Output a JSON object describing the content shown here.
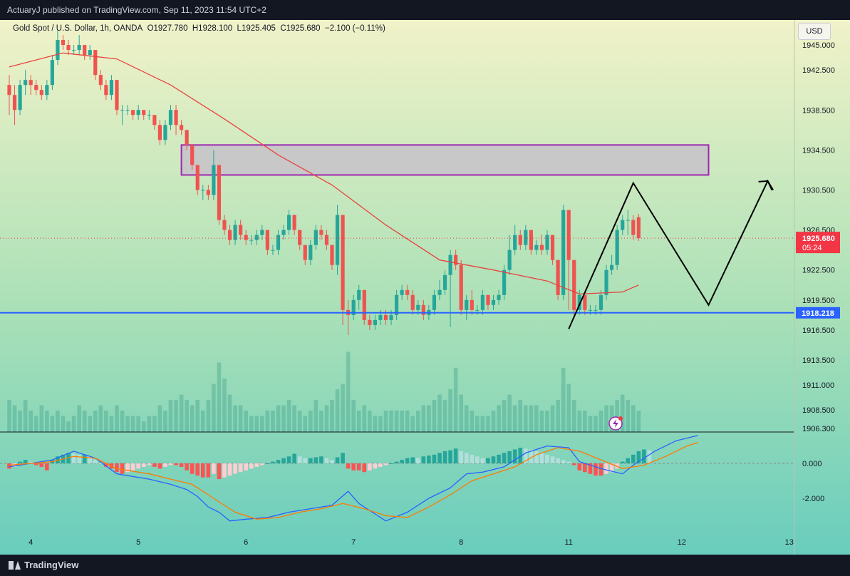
{
  "header": {
    "publisher": "ActuaryJ published on TradingView.com, Sep 11, 2023 11:54 UTC+2"
  },
  "legend": {
    "symbol": "Gold Spot / U.S. Dollar, 1h, OANDA",
    "open": "O1927.780",
    "high": "H1928.100",
    "low": "L1925.405",
    "close": "C1925.680",
    "change": "−2.100 (−0.11%)"
  },
  "currency_button": "USD",
  "brand": "TradingView",
  "colors": {
    "bullish": "#26a69a",
    "bearish": "#ef5350",
    "ma_line": "#e8433f",
    "support_line": "#2962ff",
    "zone_fill": "#c8c8c8",
    "zone_border": "#9c27b0",
    "macd_line": "#2962ff",
    "signal_line": "#ff7b00",
    "price_label": "#f23645"
  },
  "chart_data": {
    "type": "candlestick",
    "symbol": "Gold Spot / U.S. Dollar",
    "timeframe": "1h",
    "price_axis": {
      "ylim": [
        1906.3,
        1947.5
      ],
      "ticks": [
        "1945.000",
        "1942.500",
        "1938.500",
        "1934.500",
        "1930.500",
        "1926.500",
        "1922.500",
        "1919.500",
        "1916.500",
        "1913.500",
        "1911.000",
        "1908.500",
        "1906.300"
      ]
    },
    "x_axis": {
      "ticks": [
        "4",
        "5",
        "6",
        "7",
        "8",
        "11",
        "12",
        "13"
      ],
      "tick_index": [
        4,
        24,
        44,
        64,
        84,
        104,
        125,
        145
      ]
    },
    "candles": [
      [
        1941,
        1940,
        1942,
        1938
      ],
      [
        1940,
        1938.5,
        1941,
        1937
      ],
      [
        1938.5,
        1941,
        1941.5,
        1938
      ],
      [
        1941,
        1941.5,
        1942.5,
        1940
      ],
      [
        1941.5,
        1941,
        1942,
        1940
      ],
      [
        1941,
        1940.5,
        1941.5,
        1940
      ],
      [
        1940.5,
        1940,
        1941,
        1939.5
      ],
      [
        1940,
        1941,
        1941.5,
        1939.5
      ],
      [
        1941,
        1943.5,
        1944,
        1940.5
      ],
      [
        1943.5,
        1945.5,
        1946.5,
        1943
      ],
      [
        1945.5,
        1945,
        1946,
        1944.5
      ],
      [
        1945,
        1944.5,
        1945.5,
        1944
      ],
      [
        1944.5,
        1944.5,
        1945,
        1944
      ],
      [
        1944.5,
        1945,
        1946,
        1944
      ],
      [
        1945,
        1944,
        1945,
        1943.5
      ],
      [
        1944,
        1944.5,
        1945,
        1943.5
      ],
      [
        1944.5,
        1942,
        1944.5,
        1941.5
      ],
      [
        1942,
        1941,
        1942.5,
        1940.5
      ],
      [
        1941,
        1940,
        1941.5,
        1939.5
      ],
      [
        1940,
        1941.5,
        1942,
        1939.5
      ],
      [
        1941.5,
        1938.5,
        1941.5,
        1938
      ],
      [
        1938.5,
        1938.5,
        1939,
        1937
      ],
      [
        1938.5,
        1938.5,
        1939,
        1938
      ],
      [
        1938.5,
        1938,
        1938.5,
        1937.5
      ],
      [
        1938,
        1938.5,
        1939,
        1937.5
      ],
      [
        1938.5,
        1938,
        1938.5,
        1937.5
      ],
      [
        1938,
        1938,
        1938.5,
        1937.5
      ],
      [
        1938,
        1937,
        1938,
        1936.5
      ],
      [
        1937,
        1935.5,
        1937.5,
        1935
      ],
      [
        1935.5,
        1937,
        1937.5,
        1935
      ],
      [
        1937,
        1938.5,
        1939,
        1936.5
      ],
      [
        1938.5,
        1937,
        1939,
        1936
      ],
      [
        1937,
        1936.5,
        1937.5,
        1936
      ],
      [
        1936.5,
        1935,
        1936.5,
        1934.5
      ],
      [
        1935,
        1933,
        1935,
        1932.5
      ],
      [
        1933,
        1930.5,
        1933,
        1930
      ],
      [
        1930.5,
        1930.5,
        1931,
        1929.5
      ],
      [
        1930.5,
        1930,
        1931,
        1929.5
      ],
      [
        1930,
        1933,
        1934.5,
        1929.5
      ],
      [
        1933,
        1927.5,
        1933,
        1927
      ],
      [
        1927.5,
        1926.5,
        1928,
        1926
      ],
      [
        1926.5,
        1925.5,
        1927,
        1925
      ],
      [
        1925.5,
        1927,
        1927.5,
        1925
      ],
      [
        1927,
        1926,
        1927.5,
        1925.5
      ],
      [
        1926,
        1925.5,
        1926.5,
        1925
      ],
      [
        1925.5,
        1925.5,
        1926,
        1925
      ],
      [
        1925.5,
        1926,
        1926.5,
        1925
      ],
      [
        1926,
        1926.5,
        1927,
        1925.5
      ],
      [
        1926.5,
        1924.5,
        1926.5,
        1924
      ],
      [
        1924.5,
        1924.5,
        1925,
        1924
      ],
      [
        1924.5,
        1926,
        1926.5,
        1924
      ],
      [
        1926,
        1926.5,
        1927,
        1925.5
      ],
      [
        1926.5,
        1928,
        1928.5,
        1926
      ],
      [
        1928,
        1926.5,
        1928,
        1926
      ],
      [
        1926.5,
        1925,
        1926.5,
        1924.5
      ],
      [
        1925,
        1923.5,
        1925,
        1923
      ],
      [
        1923.5,
        1925,
        1925.5,
        1923
      ],
      [
        1925,
        1926.5,
        1927,
        1924.5
      ],
      [
        1926.5,
        1926,
        1927,
        1925.5
      ],
      [
        1926,
        1925,
        1926.5,
        1924.5
      ],
      [
        1925,
        1923,
        1925,
        1922.5
      ],
      [
        1923,
        1928,
        1929,
        1922
      ],
      [
        1928,
        1918.5,
        1928,
        1917
      ],
      [
        1918.5,
        1918,
        1919.5,
        1916
      ],
      [
        1918,
        1919.5,
        1920,
        1917.5
      ],
      [
        1919.5,
        1920.5,
        1921,
        1918.5
      ],
      [
        1920.5,
        1917.5,
        1920.5,
        1917
      ],
      [
        1917.5,
        1917,
        1918,
        1916.5
      ],
      [
        1917,
        1917.5,
        1918,
        1916.5
      ],
      [
        1917.5,
        1918,
        1918.5,
        1917
      ],
      [
        1918,
        1917.5,
        1918.5,
        1917
      ],
      [
        1917.5,
        1918,
        1918.5,
        1917
      ],
      [
        1918,
        1920,
        1920.5,
        1917.5
      ],
      [
        1920,
        1920.5,
        1921,
        1919.5
      ],
      [
        1920.5,
        1920,
        1921,
        1919.5
      ],
      [
        1920,
        1918.5,
        1920.5,
        1918
      ],
      [
        1918.5,
        1919,
        1919.5,
        1918
      ],
      [
        1919,
        1918,
        1919.5,
        1917.5
      ],
      [
        1918,
        1918.5,
        1919,
        1917.5
      ],
      [
        1918.5,
        1920,
        1920.5,
        1918
      ],
      [
        1920,
        1920.5,
        1921.5,
        1919.5
      ],
      [
        1920.5,
        1922,
        1922.5,
        1920
      ],
      [
        1922,
        1924,
        1924.5,
        1916.8
      ],
      [
        1924,
        1923,
        1924.5,
        1922.5
      ],
      [
        1923,
        1918.5,
        1923.5,
        1918
      ],
      [
        1918.5,
        1919.5,
        1920,
        1917.5
      ],
      [
        1919.5,
        1918.5,
        1920.5,
        1918
      ],
      [
        1918.5,
        1918.5,
        1919,
        1918
      ],
      [
        1918.5,
        1920,
        1920.5,
        1918
      ],
      [
        1920,
        1919,
        1920,
        1918.5
      ],
      [
        1919,
        1919.5,
        1920,
        1918.5
      ],
      [
        1919.5,
        1920,
        1920.5,
        1919
      ],
      [
        1920,
        1922.5,
        1923,
        1919.5
      ],
      [
        1922.5,
        1924.5,
        1926,
        1922
      ],
      [
        1924.5,
        1926,
        1927,
        1924
      ],
      [
        1926,
        1925,
        1926.5,
        1924.5
      ],
      [
        1925,
        1926.5,
        1927,
        1924.5
      ],
      [
        1926.5,
        1924.5,
        1926.5,
        1924
      ],
      [
        1924.5,
        1925,
        1925.5,
        1924
      ],
      [
        1925,
        1924.5,
        1926,
        1924
      ],
      [
        1924.5,
        1926,
        1926.5,
        1924
      ],
      [
        1926,
        1923.5,
        1926,
        1923
      ],
      [
        1923.5,
        1920,
        1923.5,
        1919.5
      ],
      [
        1920,
        1928.5,
        1929,
        1919.5
      ],
      [
        1928.5,
        1923.5,
        1928.5,
        1918.5
      ],
      [
        1923.5,
        1918.5,
        1923.5,
        1918
      ],
      [
        1918.5,
        1920,
        1920.5,
        1918
      ],
      [
        1920,
        1918.5,
        1920,
        1918
      ],
      [
        1918.5,
        1918.5,
        1919,
        1918
      ],
      [
        1918.5,
        1918.5,
        1919,
        1918
      ],
      [
        1918.5,
        1920,
        1920.5,
        1918
      ],
      [
        1920,
        1922.5,
        1923,
        1919.5
      ],
      [
        1922.5,
        1923,
        1924,
        1922
      ],
      [
        1923,
        1926.5,
        1927,
        1922.5
      ],
      [
        1926.5,
        1927.5,
        1928,
        1926
      ],
      [
        1927.5,
        1927.5,
        1928.5,
        1926
      ],
      [
        1927.5,
        1926,
        1928,
        1925.5
      ],
      [
        1927.78,
        1925.68,
        1928.1,
        1925.405
      ]
    ],
    "volume": [
      6,
      5,
      4,
      6,
      4,
      3,
      5,
      4,
      3,
      4,
      3,
      2,
      3,
      5,
      4,
      3,
      4,
      5,
      4,
      3,
      5,
      4,
      3,
      3,
      3,
      2,
      3,
      3,
      5,
      4,
      6,
      6,
      7,
      6,
      5,
      6,
      4,
      6,
      9,
      13,
      10,
      7,
      5,
      5,
      4,
      3,
      3,
      3,
      4,
      4,
      5,
      5,
      6,
      5,
      4,
      3,
      4,
      6,
      4,
      5,
      6,
      8,
      9,
      15,
      6,
      4,
      5,
      4,
      3,
      3,
      4,
      4,
      4,
      4,
      4,
      3,
      4,
      5,
      5,
      6,
      7,
      6,
      8,
      12,
      7,
      5,
      4,
      3,
      3,
      3,
      4,
      5,
      6,
      7,
      5,
      6,
      5,
      5,
      5,
      4,
      4,
      5,
      6,
      12,
      9,
      6,
      4,
      4,
      3,
      3,
      4,
      5,
      5,
      6,
      7,
      6,
      5,
      4
    ],
    "moving_average": {
      "ylim": [
        1906.3,
        1947.5
      ],
      "points": [
        [
          0,
          1942.8
        ],
        [
          10,
          1944.2
        ],
        [
          20,
          1943.6
        ],
        [
          30,
          1941.0
        ],
        [
          40,
          1937.6
        ],
        [
          50,
          1934.0
        ],
        [
          60,
          1931.0
        ],
        [
          70,
          1927.0
        ],
        [
          80,
          1923.5
        ],
        [
          90,
          1922.5
        ],
        [
          100,
          1921.4
        ],
        [
          106,
          1920.1
        ],
        [
          114,
          1920.3
        ],
        [
          117,
          1921.0
        ]
      ]
    },
    "horizontal_level": {
      "value": 1918.218,
      "label": "1918.218"
    },
    "current_price": {
      "value": 1925.68,
      "label": "1925.680",
      "countdown": "05:24"
    },
    "supply_zone": {
      "from_index": 32,
      "to_index": 130,
      "low": 1932.0,
      "high": 1935.0
    },
    "projection_path": [
      [
        104,
        1916.6
      ],
      [
        116,
        1931.2
      ],
      [
        130,
        1919.0
      ],
      [
        141,
        1931.4
      ],
      [
        142,
        1930.5
      ]
    ],
    "macd": {
      "ylim": [
        -3.8,
        1.8
      ],
      "ticks": [
        "0.000",
        "-2.000"
      ],
      "histogram": [
        -0.3,
        -0.2,
        0.1,
        0.2,
        0.1,
        -0.1,
        -0.2,
        -0.4,
        0.2,
        0.4,
        0.5,
        0.6,
        0.55,
        0.5,
        0.5,
        0.4,
        0.2,
        0.0,
        -0.2,
        -0.3,
        -0.5,
        -0.6,
        -0.5,
        -0.4,
        -0.3,
        -0.2,
        -0.1,
        -0.2,
        -0.3,
        -0.2,
        -0.1,
        -0.1,
        -0.2,
        -0.4,
        -0.6,
        -0.7,
        -0.8,
        -0.8,
        -0.6,
        -0.9,
        -0.8,
        -0.7,
        -0.6,
        -0.5,
        -0.4,
        -0.3,
        -0.2,
        -0.1,
        0.0,
        0.1,
        0.2,
        0.3,
        0.4,
        0.55,
        0.4,
        0.3,
        0.3,
        0.35,
        0.4,
        0.3,
        0.2,
        0.35,
        0.6,
        -0.3,
        -0.4,
        -0.4,
        -0.5,
        -0.4,
        -0.3,
        -0.2,
        -0.1,
        0.0,
        0.1,
        0.2,
        0.3,
        0.35,
        0.3,
        0.4,
        0.45,
        0.5,
        0.6,
        0.7,
        0.75,
        0.85,
        0.7,
        0.6,
        0.5,
        0.4,
        0.3,
        0.3,
        0.4,
        0.5,
        0.6,
        0.7,
        0.8,
        0.9,
        0.85,
        0.8,
        0.7,
        0.6,
        0.5,
        0.4,
        0.3,
        0.2,
        0.1,
        -0.1,
        -0.4,
        -0.5,
        -0.6,
        -0.7,
        -0.7,
        -0.6,
        -0.5,
        -0.3,
        0.1,
        0.3,
        0.5,
        0.7,
        0.8,
        0.75
      ],
      "macd_line": [
        [
          0,
          -0.2
        ],
        [
          8,
          0.2
        ],
        [
          12,
          0.7
        ],
        [
          16,
          0.3
        ],
        [
          20,
          -0.6
        ],
        [
          26,
          -0.9
        ],
        [
          30,
          -1.2
        ],
        [
          33,
          -1.5
        ],
        [
          35,
          -1.9
        ],
        [
          37,
          -2.5
        ],
        [
          39,
          -2.8
        ],
        [
          41,
          -3.3
        ],
        [
          44,
          -3.2
        ],
        [
          48,
          -3.1
        ],
        [
          52,
          -2.8
        ],
        [
          56,
          -2.6
        ],
        [
          60,
          -2.4
        ],
        [
          63,
          -1.6
        ],
        [
          65,
          -2.3
        ],
        [
          68,
          -2.9
        ],
        [
          70,
          -3.3
        ],
        [
          74,
          -2.8
        ],
        [
          78,
          -2.0
        ],
        [
          82,
          -1.4
        ],
        [
          85,
          -0.6
        ],
        [
          88,
          -0.5
        ],
        [
          92,
          -0.2
        ],
        [
          96,
          0.6
        ],
        [
          100,
          1.0
        ],
        [
          104,
          0.9
        ],
        [
          106,
          0.1
        ],
        [
          110,
          -0.3
        ],
        [
          114,
          -0.6
        ],
        [
          116,
          -0.1
        ],
        [
          120,
          0.7
        ],
        [
          124,
          1.3
        ],
        [
          128,
          1.6
        ]
      ],
      "signal_line": [
        [
          0,
          -0.1
        ],
        [
          8,
          0.1
        ],
        [
          12,
          0.4
        ],
        [
          16,
          0.3
        ],
        [
          20,
          -0.3
        ],
        [
          26,
          -0.6
        ],
        [
          30,
          -0.9
        ],
        [
          34,
          -1.2
        ],
        [
          38,
          -2.0
        ],
        [
          42,
          -2.8
        ],
        [
          46,
          -3.2
        ],
        [
          50,
          -3.1
        ],
        [
          54,
          -2.8
        ],
        [
          58,
          -2.6
        ],
        [
          62,
          -2.3
        ],
        [
          66,
          -2.6
        ],
        [
          70,
          -3.0
        ],
        [
          74,
          -3.1
        ],
        [
          78,
          -2.5
        ],
        [
          82,
          -1.8
        ],
        [
          86,
          -1.0
        ],
        [
          90,
          -0.6
        ],
        [
          94,
          -0.2
        ],
        [
          98,
          0.5
        ],
        [
          102,
          0.9
        ],
        [
          106,
          0.7
        ],
        [
          110,
          0.2
        ],
        [
          114,
          -0.3
        ],
        [
          118,
          -0.1
        ],
        [
          122,
          0.4
        ],
        [
          126,
          1.0
        ],
        [
          128,
          1.2
        ]
      ]
    }
  }
}
